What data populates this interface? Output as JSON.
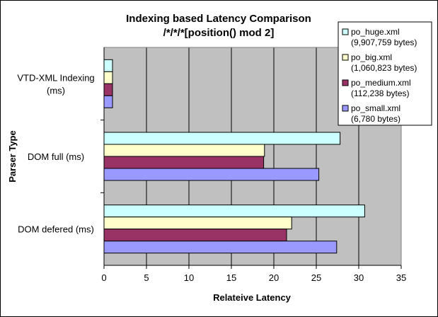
{
  "chart_data": {
    "type": "bar",
    "orientation": "horizontal",
    "title": "Indexing based Latency Comparison",
    "subtitle": "/*/*/*[position() mod 2]",
    "xlabel": "Relateive Latency",
    "ylabel": "Parser Type",
    "xlim": [
      0,
      35
    ],
    "xticks": [
      "0",
      "5",
      "10",
      "15",
      "20",
      "25",
      "30",
      "35"
    ],
    "grid": true,
    "legend_position": "top-right",
    "categories": [
      {
        "line1": "VTD-XML Indexing",
        "line2": "(ms)"
      },
      {
        "line1": "DOM full (ms)",
        "line2": ""
      },
      {
        "line1": "DOM defered (ms)",
        "line2": ""
      }
    ],
    "series": [
      {
        "name": "po_huge.xml",
        "detail": "(9,907,759 bytes)",
        "color": "#ccffff",
        "values": [
          1,
          27.8,
          30.7
        ]
      },
      {
        "name": "po_big.xml",
        "detail": "(1,060,823 bytes)",
        "color": "#ffffcc",
        "values": [
          1,
          18.9,
          22.1
        ]
      },
      {
        "name": "po_medium.xml",
        "detail": "(112,238 bytes)",
        "color": "#993366",
        "values": [
          1,
          18.8,
          21.5
        ]
      },
      {
        "name": "po_small.xml",
        "detail": "(6,780 bytes)",
        "color": "#9999ff",
        "values": [
          1,
          25.3,
          27.4
        ]
      }
    ]
  }
}
